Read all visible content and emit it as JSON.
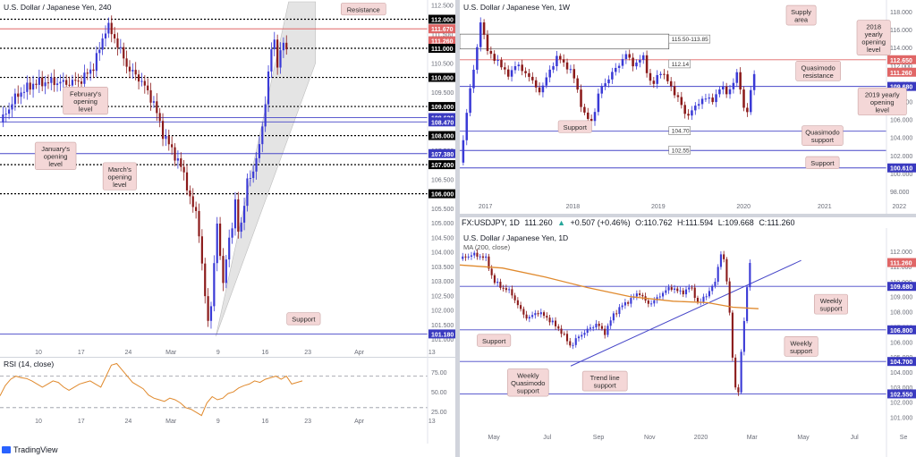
{
  "brand": "TradingView",
  "colors": {
    "up": "#3a3ad6",
    "down": "#8b1a1a",
    "axis_bg": "#000000",
    "axis_fg": "#ffffff",
    "resistance": "#e06666",
    "support_line": "#4646c8",
    "note_bg": "#f4d7d7",
    "note_border": "#c9a3a3",
    "rsi": "#e08a2e",
    "ma": "#e08a2e",
    "trend": "#4646c8",
    "channel": "#e4e4e4"
  },
  "legend": {
    "symbol": "FX:USDJPY, 1D",
    "o_label": "O:",
    "o": "110.762",
    "h_label": "H:",
    "h": "111.594",
    "l_label": "L:",
    "l": "109.668",
    "c_label": "C:",
    "c": "111.260",
    "last": "111.260",
    "chg": "+0.507 (+0.46%)"
  },
  "chart_data": [
    {
      "type": "candlestick",
      "title": "U.S. Dollar / Japanese Yen, 240",
      "ylim": [
        100.7,
        112.6
      ],
      "xlim": [
        0,
        100
      ],
      "x_tick_labels": [
        {
          "x": 9,
          "label": "10"
        },
        {
          "x": 19,
          "label": "17"
        },
        {
          "x": 30,
          "label": "24"
        },
        {
          "x": 40,
          "label": "Mar"
        },
        {
          "x": 51,
          "label": "9"
        },
        {
          "x": 62,
          "label": "16"
        },
        {
          "x": 72,
          "label": "23"
        },
        {
          "x": 84,
          "label": "Apr"
        },
        {
          "x": 101,
          "label": "13"
        }
      ],
      "y_ticks": [
        "112.500",
        "112.000",
        "111.500",
        "111.000",
        "110.500",
        "110.000",
        "109.500",
        "109.000",
        "108.500",
        "108.000",
        "107.500",
        "107.000",
        "106.500",
        "106.000",
        "105.500",
        "105.000",
        "104.500",
        "104.000",
        "103.500",
        "103.000",
        "102.500",
        "102.000",
        "101.500",
        "101.000"
      ],
      "levels": [
        {
          "value": 112.0,
          "label": "112.000",
          "style": "dotted",
          "color": "#000000"
        },
        {
          "value": 111.67,
          "label": "111.670",
          "style": "solid",
          "color": "#e06666"
        },
        {
          "value": 111.26,
          "label": "111.260",
          "style": "none",
          "color": "#e06666"
        },
        {
          "value": 111.0,
          "label": "111.000",
          "style": "dotted",
          "color": "#000000"
        },
        {
          "value": 110.0,
          "label": "110.000",
          "style": "dotted",
          "color": "#000000"
        },
        {
          "value": 109.0,
          "label": "109.000",
          "style": "dotted",
          "color": "#000000"
        },
        {
          "value": 108.62,
          "label": "108.620",
          "style": "solid",
          "color": "#4646c8"
        },
        {
          "value": 108.47,
          "label": "108.470",
          "style": "solid",
          "color": "#4646c8"
        },
        {
          "value": 108.0,
          "label": "108.000",
          "style": "dotted",
          "color": "#000000"
        },
        {
          "value": 107.38,
          "label": "107.380",
          "style": "solid",
          "color": "#4646c8"
        },
        {
          "value": 107.0,
          "label": "107.000",
          "style": "dotted",
          "color": "#000000"
        },
        {
          "value": 106.0,
          "label": "106.000",
          "style": "dotted",
          "color": "#000000"
        },
        {
          "value": 101.18,
          "label": "101.180",
          "style": "solid",
          "color": "#4646c8"
        }
      ],
      "annotations": [
        {
          "text": "Resistance",
          "x": 85,
          "y": 112.35
        },
        {
          "text": "February's opening level",
          "x": 20,
          "y": 109.2
        },
        {
          "text": "January's opening level",
          "x": 13,
          "y": 107.3
        },
        {
          "text": "March's opening level",
          "x": 28,
          "y": 106.6
        },
        {
          "text": "Support",
          "x": 71,
          "y": 101.7
        }
      ],
      "channel": [
        [
          50.5,
          101.1
        ],
        [
          67.5,
          112.6
        ],
        [
          73.8,
          112.6
        ],
        [
          73.8,
          110.5
        ],
        [
          50.5,
          101.1
        ]
      ],
      "path": [
        [
          0,
          108.45
        ],
        [
          4,
          109.4
        ],
        [
          8,
          109.8
        ],
        [
          12,
          109.85
        ],
        [
          16,
          109.8
        ],
        [
          19,
          109.9
        ],
        [
          22,
          110.4
        ],
        [
          25,
          111.8
        ],
        [
          27,
          111.3
        ],
        [
          30,
          110.3
        ],
        [
          33,
          109.9
        ],
        [
          36,
          109.1
        ],
        [
          38,
          108.1
        ],
        [
          41,
          107.3
        ],
        [
          43,
          106.7
        ],
        [
          45,
          105.5
        ],
        [
          46,
          105.4
        ],
        [
          47,
          104.0
        ],
        [
          48,
          102.3
        ],
        [
          49,
          101.4
        ],
        [
          50,
          103.5
        ],
        [
          51,
          105.2
        ],
        [
          52,
          102.7
        ],
        [
          53,
          103.9
        ],
        [
          54,
          104.6
        ],
        [
          55,
          105.8
        ],
        [
          56,
          104.3
        ],
        [
          57,
          105.6
        ],
        [
          58,
          106.7
        ],
        [
          59,
          106.4
        ],
        [
          60,
          107.4
        ],
        [
          61,
          107.9
        ],
        [
          62,
          108.9
        ],
        [
          63,
          110.7
        ],
        [
          64,
          111.4
        ],
        [
          65,
          110.2
        ],
        [
          66,
          111.5
        ],
        [
          67,
          110.8
        ]
      ]
    },
    {
      "type": "line",
      "title": "RSI (14, close)",
      "ylim": [
        15,
        90
      ],
      "y_ticks": [
        "75.00",
        "50.00",
        "25.00"
      ],
      "guides": [
        70,
        30
      ],
      "series": [
        {
          "values": [
            45,
            58,
            66,
            70,
            68,
            67,
            64,
            60,
            56,
            60,
            64,
            62,
            56,
            52,
            56,
            60,
            62,
            64,
            60,
            56,
            70,
            84,
            86,
            78,
            70,
            62,
            58,
            54,
            46,
            42,
            40,
            38,
            42,
            40,
            36,
            30,
            28,
            24,
            20,
            36,
            44,
            40,
            42,
            48,
            50,
            55,
            58,
            60,
            64,
            62,
            66,
            68,
            70,
            66,
            70,
            60,
            62,
            64
          ]
        }
      ]
    },
    {
      "type": "candlestick",
      "title": "U.S. Dollar / Japanese Yen, 1W",
      "ylim": [
        97.3,
        118.9
      ],
      "xlim": [
        0,
        100
      ],
      "x_tick_labels": [
        {
          "x": 6,
          "label": "2017"
        },
        {
          "x": 26.5,
          "label": "2018"
        },
        {
          "x": 46.5,
          "label": "2019"
        },
        {
          "x": 66.5,
          "label": "2020"
        },
        {
          "x": 85.5,
          "label": "2021"
        },
        {
          "x": 103,
          "label": "2022"
        }
      ],
      "y_ticks": [
        "118.000",
        "116.000",
        "114.000",
        "112.000",
        "110.000",
        "108.000",
        "106.000",
        "104.000",
        "102.000",
        "100.000",
        "98.000"
      ],
      "levels": [
        {
          "value": 112.65,
          "label": "112.650",
          "style": "solid",
          "color": "#e06666"
        },
        {
          "value": 111.26,
          "label": "111.260",
          "style": "none",
          "color": "#e06666"
        },
        {
          "value": 109.68,
          "label": "109.680",
          "style": "solid",
          "color": "#4646c8"
        },
        {
          "value": 104.7,
          "label": "",
          "style": "solid",
          "color": "#4646c8"
        },
        {
          "value": 102.55,
          "label": "",
          "style": "solid",
          "color": "#4646c8"
        },
        {
          "value": 100.61,
          "label": "100.610",
          "style": "solid",
          "color": "#4646c8"
        }
      ],
      "zones": [
        {
          "from": 113.85,
          "to": 115.5,
          "label": "115.50-113.85"
        }
      ],
      "tags": [
        {
          "y": 112.14,
          "label": "112.14"
        },
        {
          "y": 104.7,
          "label": "104.70"
        },
        {
          "y": 102.55,
          "label": "102.55"
        }
      ],
      "annotations": [
        {
          "text": "Supply area",
          "x": 80,
          "y": 117.6
        },
        {
          "text": "2018 yearly opening level",
          "x": 97,
          "y": 115.1
        },
        {
          "text": "Quasimodo resistance",
          "x": 84,
          "y": 111.4
        },
        {
          "text": "2019 yearly opening level",
          "x": 99,
          "y": 108.0
        },
        {
          "text": "Support",
          "x": 27,
          "y": 105.2
        },
        {
          "text": "Quasimodo support",
          "x": 85,
          "y": 104.2
        },
        {
          "text": "Support",
          "x": 85,
          "y": 101.2
        }
      ],
      "path": [
        [
          0,
          101.2
        ],
        [
          1,
          104.0
        ],
        [
          2,
          108.5
        ],
        [
          4,
          113.5
        ],
        [
          5,
          117.5
        ],
        [
          6,
          114.5
        ],
        [
          7,
          113.0
        ],
        [
          9,
          112.6
        ],
        [
          11,
          110.8
        ],
        [
          13,
          112.0
        ],
        [
          15,
          111.5
        ],
        [
          17,
          110.2
        ],
        [
          19,
          109.0
        ],
        [
          21,
          111.5
        ],
        [
          23,
          113.0
        ],
        [
          25,
          112.0
        ],
        [
          27,
          110.5
        ],
        [
          29,
          106.5
        ],
        [
          31,
          105.8
        ],
        [
          33,
          109.6
        ],
        [
          35,
          110.6
        ],
        [
          37,
          112.0
        ],
        [
          39,
          113.2
        ],
        [
          41,
          112.0
        ],
        [
          43,
          113.0
        ],
        [
          45,
          109.5
        ],
        [
          47,
          111.5
        ],
        [
          49,
          110.0
        ],
        [
          51,
          108.5
        ],
        [
          53,
          106.4
        ],
        [
          55,
          107.2
        ],
        [
          57,
          108.5
        ],
        [
          59,
          108.0
        ],
        [
          61,
          109.5
        ],
        [
          63,
          109.0
        ],
        [
          65,
          111.0
        ],
        [
          66,
          109.2
        ],
        [
          67,
          105.8
        ],
        [
          68,
          108.5
        ],
        [
          69,
          111.3
        ]
      ]
    },
    {
      "type": "candlestick",
      "title": "U.S. Dollar / Japanese Yen, 1D",
      "ylim": [
        100.5,
        112.6
      ],
      "xlim": [
        0,
        100
      ],
      "x_tick_labels": [
        {
          "x": 8,
          "label": "May"
        },
        {
          "x": 20.5,
          "label": "Jul"
        },
        {
          "x": 32.5,
          "label": "Sep"
        },
        {
          "x": 44.5,
          "label": "Nov"
        },
        {
          "x": 56.5,
          "label": "2020"
        },
        {
          "x": 68.5,
          "label": "Mar"
        },
        {
          "x": 80.5,
          "label": "May"
        },
        {
          "x": 92.5,
          "label": "Jul"
        },
        {
          "x": 104,
          "label": "Se"
        }
      ],
      "y_ticks": [
        "112.000",
        "111.000",
        "110.000",
        "109.000",
        "108.000",
        "107.000",
        "106.000",
        "105.000",
        "104.000",
        "103.000",
        "102.000",
        "101.000"
      ],
      "levels": [
        {
          "value": 111.26,
          "label": "111.260",
          "style": "none",
          "color": "#e06666"
        },
        {
          "value": 109.68,
          "label": "109.680",
          "style": "solid",
          "color": "#4646c8"
        },
        {
          "value": 106.8,
          "label": "106.800",
          "style": "solid",
          "color": "#4646c8"
        },
        {
          "value": 104.7,
          "label": "104.700",
          "style": "solid",
          "color": "#4646c8"
        },
        {
          "value": 102.55,
          "label": "102.550",
          "style": "solid",
          "color": "#4646c8"
        }
      ],
      "indicator_label": "MA (200, close)",
      "ma": [
        [
          0,
          111.1
        ],
        [
          10,
          110.9
        ],
        [
          20,
          110.3
        ],
        [
          30,
          109.6
        ],
        [
          40,
          109.0
        ],
        [
          50,
          108.7
        ],
        [
          58,
          108.6
        ],
        [
          64,
          108.3
        ],
        [
          70,
          108.2
        ]
      ],
      "trend_line": [
        [
          26,
          104.4
        ],
        [
          80,
          111.4
        ]
      ],
      "annotations": [
        {
          "text": "Weekly support",
          "x": 87,
          "y": 108.5
        },
        {
          "text": "Support",
          "x": 8,
          "y": 106.1
        },
        {
          "text": "Weekly support",
          "x": 80,
          "y": 105.7
        },
        {
          "text": "Trend line support",
          "x": 34,
          "y": 103.4
        },
        {
          "text": "Weekly Quasimodo support",
          "x": 16,
          "y": 103.3
        }
      ],
      "path": [
        [
          0,
          111.5
        ],
        [
          3,
          111.8
        ],
        [
          6,
          111.6
        ],
        [
          8,
          110.0
        ],
        [
          10,
          109.6
        ],
        [
          12,
          109.3
        ],
        [
          14,
          108.2
        ],
        [
          16,
          107.5
        ],
        [
          18,
          108.0
        ],
        [
          20,
          107.7
        ],
        [
          22,
          107.2
        ],
        [
          24,
          106.6
        ],
        [
          26,
          105.7
        ],
        [
          28,
          106.4
        ],
        [
          30,
          106.8
        ],
        [
          32,
          107.2
        ],
        [
          34,
          106.6
        ],
        [
          36,
          107.8
        ],
        [
          38,
          108.4
        ],
        [
          40,
          108.8
        ],
        [
          42,
          109.3
        ],
        [
          44,
          108.5
        ],
        [
          46,
          108.8
        ],
        [
          48,
          109.4
        ],
        [
          50,
          109.6
        ],
        [
          52,
          109.2
        ],
        [
          54,
          109.7
        ],
        [
          56,
          108.5
        ],
        [
          58,
          109.2
        ],
        [
          60,
          110.0
        ],
        [
          61,
          112.0
        ],
        [
          62,
          111.3
        ],
        [
          63,
          109.0
        ],
        [
          64,
          104.7
        ],
        [
          65,
          101.6
        ],
        [
          66,
          105.5
        ],
        [
          67,
          108.6
        ],
        [
          68,
          111.3
        ]
      ]
    }
  ]
}
